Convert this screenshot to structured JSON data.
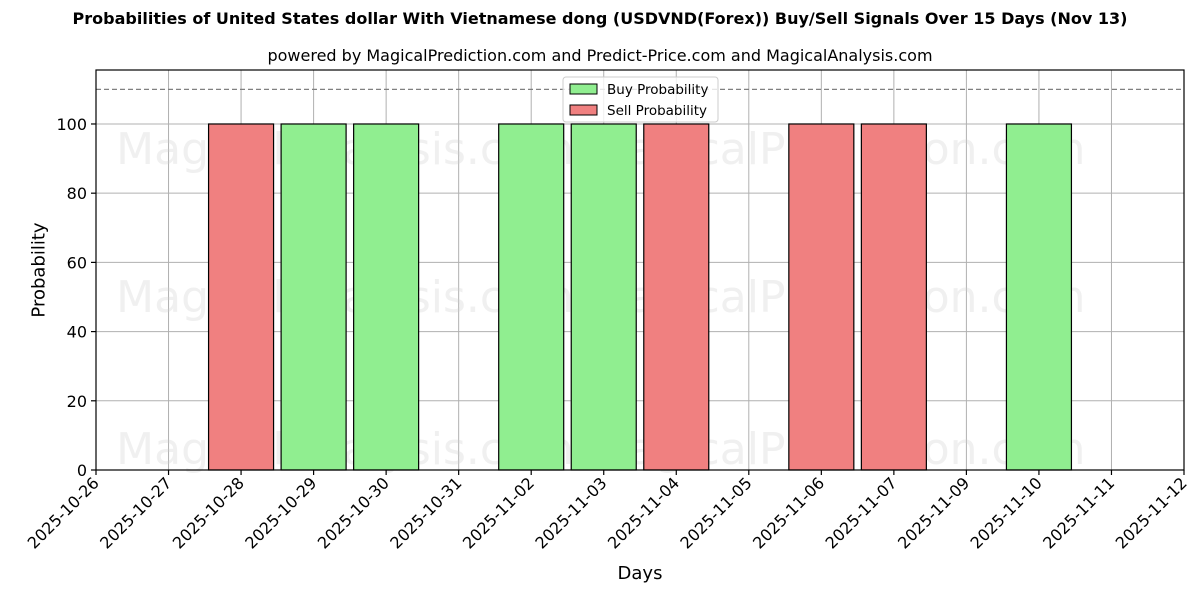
{
  "header": {
    "title": "Probabilities of United States dollar With Vietnamese dong (USDVND(Forex)) Buy/Sell Signals Over 15 Days (Nov 13)",
    "subtitle": "powered by MagicalPrediction.com and Predict-Price.com and MagicalAnalysis.com"
  },
  "axes": {
    "xlabel": "Days",
    "ylabel": "Probability"
  },
  "legend": {
    "items": [
      {
        "label": "Buy Probability",
        "color": "#90ee90"
      },
      {
        "label": "Sell Probability",
        "color": "#f08080"
      }
    ]
  },
  "watermarks": [
    "MagicalAnalysis.com",
    "MagicalPrediction.com"
  ],
  "colors": {
    "buy": "#90ee90",
    "sell": "#f08080",
    "grid": "#b0b0b0",
    "threshold": "#808080"
  },
  "chart_data": {
    "type": "bar",
    "title": "Probabilities of United States dollar With Vietnamese dong (USDVND(Forex)) Buy/Sell Signals Over 15 Days (Nov 13)",
    "subtitle": "powered by MagicalPrediction.com and Predict-Price.com and MagicalAnalysis.com",
    "xlabel": "Days",
    "ylabel": "Probability",
    "ylim": [
      0,
      115.6
    ],
    "yticks": [
      0,
      20,
      40,
      60,
      80,
      100
    ],
    "grid": true,
    "legend_position": "upper center",
    "threshold_line": 110,
    "categories": [
      "2025-10-26",
      "2025-10-27",
      "2025-10-28",
      "2025-10-29",
      "2025-10-30",
      "2025-10-31",
      "2025-11-02",
      "2025-11-03",
      "2025-11-04",
      "2025-11-05",
      "2025-11-06",
      "2025-11-07",
      "2025-11-09",
      "2025-11-10",
      "2025-11-11",
      "2025-11-12"
    ],
    "series": [
      {
        "name": "Buy Probability",
        "color": "#90ee90",
        "values": [
          0,
          0,
          0,
          100,
          100,
          0,
          100,
          100,
          0,
          0,
          0,
          0,
          0,
          100,
          0,
          0
        ]
      },
      {
        "name": "Sell Probability",
        "color": "#f08080",
        "values": [
          0,
          0,
          100,
          0,
          0,
          0,
          0,
          0,
          100,
          0,
          100,
          100,
          0,
          0,
          0,
          0
        ]
      }
    ]
  }
}
